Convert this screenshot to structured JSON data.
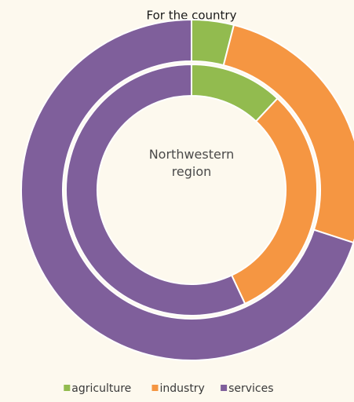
{
  "chart_data": {
    "type": "donut",
    "categories": [
      "agriculture",
      "industry",
      "services"
    ],
    "colors": [
      "#92bb4f",
      "#f59642",
      "#7f5f9b"
    ],
    "series": [
      {
        "name": "For the country",
        "values": [
          4,
          26,
          70
        ]
      },
      {
        "name": "Northwestern region",
        "values": [
          12,
          31,
          57
        ]
      }
    ]
  }
}
